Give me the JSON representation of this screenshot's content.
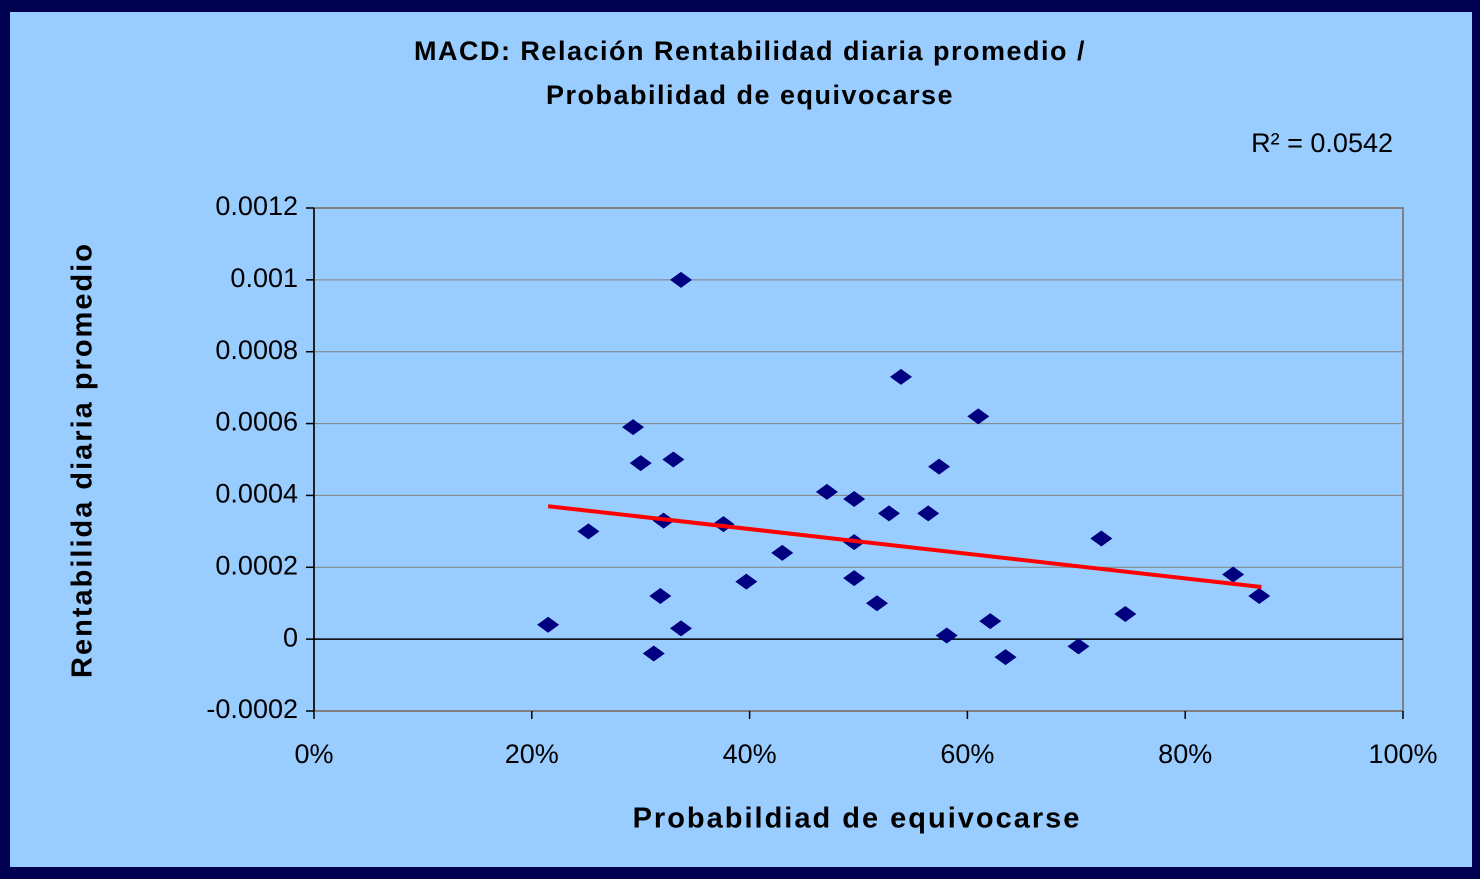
{
  "chart_data": {
    "type": "scatter",
    "title": [
      "MACD: Relación Rentabilidad diaria promedio /",
      "Probabilidad de equivocarse"
    ],
    "annotation": "R² = 0.0542",
    "x_label": "Probabildiad de equivocarse",
    "y_label": "Rentabilida diaria promedio",
    "series": [
      {
        "color": "#000080",
        "x": [
          21.5,
          25.2,
          29.3,
          30.0,
          33.0,
          32.1,
          31.8,
          31.2,
          33.7,
          33.7,
          37.6,
          39.7,
          43.0,
          47.1,
          49.6,
          49.6,
          49.6,
          51.7,
          52.8,
          53.9,
          56.4,
          57.4,
          58.1,
          61.0,
          62.1,
          63.5,
          70.2,
          72.3,
          74.5,
          84.4,
          86.8
        ],
        "values": [
          4e-05,
          0.0003,
          0.00059,
          0.00049,
          0.0005,
          0.00033,
          0.00012,
          -4e-05,
          3e-05,
          0.001,
          0.00032,
          0.00016,
          0.00024,
          0.00041,
          0.00039,
          0.00027,
          0.00017,
          0.0001,
          0.00035,
          0.00073,
          0.00035,
          0.00048,
          1e-05,
          0.00062,
          5e-05,
          -5e-05,
          -2e-05,
          0.00028,
          7e-05,
          0.00018,
          0.00012
        ]
      }
    ],
    "trendline": {
      "color": "#ff0000",
      "x": [
        21.5,
        87
      ],
      "values": [
        0.00037,
        0.000145
      ]
    },
    "xlim": [
      0,
      100
    ],
    "xticks": [
      {
        "value": 0,
        "label": "0%"
      },
      {
        "value": 20,
        "label": "20%"
      },
      {
        "value": 40,
        "label": "40%"
      },
      {
        "value": 60,
        "label": "60%"
      },
      {
        "value": 80,
        "label": "80%"
      },
      {
        "value": 100,
        "label": "100%"
      }
    ],
    "ylim": [
      -0.0002,
      0.0012
    ],
    "yticks": [
      -0.0002,
      0,
      0.0002,
      0.0004,
      0.0006,
      0.0008,
      0.001,
      0.0012
    ],
    "grid": true
  }
}
